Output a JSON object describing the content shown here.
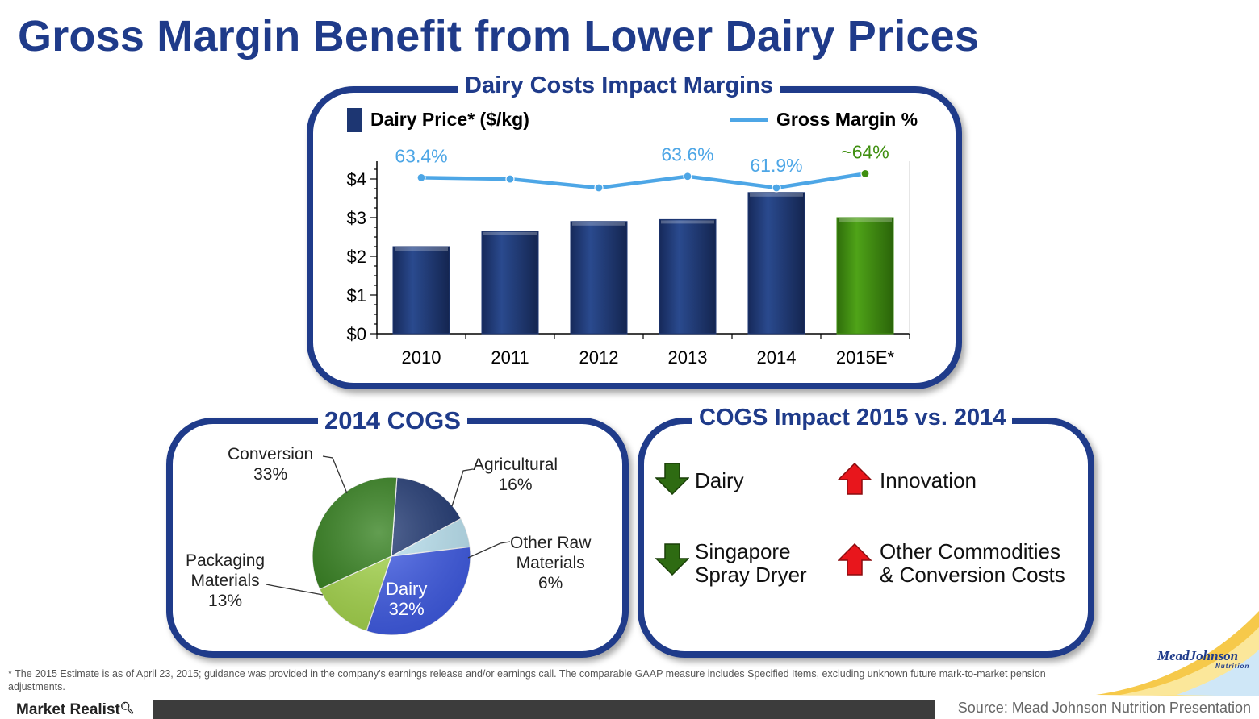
{
  "page": {
    "title": "Gross Margin Benefit from Lower Dairy Prices"
  },
  "top_panel": {
    "title": "Dairy Costs Impact Margins",
    "legend_bar": "Dairy Price* ($/kg)",
    "legend_line": "Gross Margin %"
  },
  "chart_data": [
    {
      "type": "bar",
      "title": "Dairy Costs Impact Margins",
      "categories": [
        "2010",
        "2011",
        "2012",
        "2013",
        "2014",
        "2015E*"
      ],
      "y_ticks": [
        "$0",
        "$1",
        "$2",
        "$3",
        "$4"
      ],
      "ylim": [
        0,
        4.5
      ],
      "series": [
        {
          "name": "Dairy Price* ($/kg)",
          "kind": "bar",
          "values": [
            2.25,
            2.65,
            2.9,
            2.95,
            3.65,
            3.0
          ],
          "colors": [
            "#1d3672",
            "#1d3672",
            "#1d3672",
            "#1d3672",
            "#1d3672",
            "#3f8f10"
          ]
        },
        {
          "name": "Gross Margin %",
          "kind": "line",
          "color": "#4da6e6",
          "values": [
            63.4,
            63.2,
            61.9,
            63.6,
            61.9,
            64.0
          ],
          "labels": [
            "63.4%",
            "",
            "",
            "63.6%",
            "61.9%",
            "~64%"
          ],
          "label_colors": [
            "#4da6e6",
            "#4da6e6",
            "#4da6e6",
            "#4da6e6",
            "#4da6e6",
            "#3f8f10"
          ]
        }
      ]
    },
    {
      "type": "pie",
      "title": "2014 COGS",
      "slices": [
        {
          "label": "Agricultural",
          "value": 16,
          "text": "16%",
          "color": "#1d3672"
        },
        {
          "label": "Other Raw Materials",
          "value": 6,
          "text": "6%",
          "color": "#bfe8f7"
        },
        {
          "label": "Dairy",
          "value": 32,
          "text": "32%",
          "color": "#3d5ae8"
        },
        {
          "label": "Packaging Materials",
          "value": 13,
          "text": "13%",
          "color": "#a6d84a"
        },
        {
          "label": "Conversion",
          "value": 33,
          "text": "33%",
          "color": "#2e7d17"
        }
      ]
    }
  ],
  "pie_labels": {
    "conversion_name": "Conversion",
    "conversion_pct": "33%",
    "agricultural_name": "Agricultural",
    "agricultural_pct": "16%",
    "other_raw_line1": "Other Raw",
    "other_raw_line2": "Materials",
    "other_raw_pct": "6%",
    "packaging_line1": "Packaging",
    "packaging_line2": "Materials",
    "packaging_pct": "13%",
    "dairy_name": "Dairy",
    "dairy_pct": "32%"
  },
  "cogs_impact": {
    "title": "COGS Impact 2015 vs. 2014",
    "items": [
      {
        "line1": "Dairy",
        "line2": "",
        "direction": "down",
        "icon": "down-arrow-icon",
        "color": "#2e6b12"
      },
      {
        "line1": "Innovation",
        "line2": "",
        "direction": "up",
        "icon": "up-arrow-icon",
        "color": "#e8161c"
      },
      {
        "line1": "Singapore",
        "line2": "Spray Dryer",
        "direction": "down",
        "icon": "down-arrow-icon",
        "color": "#2e6b12"
      },
      {
        "line1": "Other Commodities",
        "line2": "& Conversion Costs",
        "direction": "up",
        "icon": "up-arrow-icon",
        "color": "#e8161c"
      }
    ]
  },
  "footer": {
    "footnote": "* The 2015 Estimate is as of April 23, 2015; guidance was provided in the company's earnings release and/or earnings call. The comparable GAAP measure includes Specified Items, excluding unknown future mark-to-market pension adjustments.",
    "source": "Source: Mead Johnson Nutrition Presentation",
    "brand": "Market Realist",
    "logo_text_1": "MeadJohnson",
    "logo_text_2": "Nutrition"
  },
  "colors": {
    "brand_blue": "#1f3b8a",
    "bar_blue": "#1d3672",
    "bar_green": "#3f8f10",
    "line_blue": "#4da6e6"
  }
}
